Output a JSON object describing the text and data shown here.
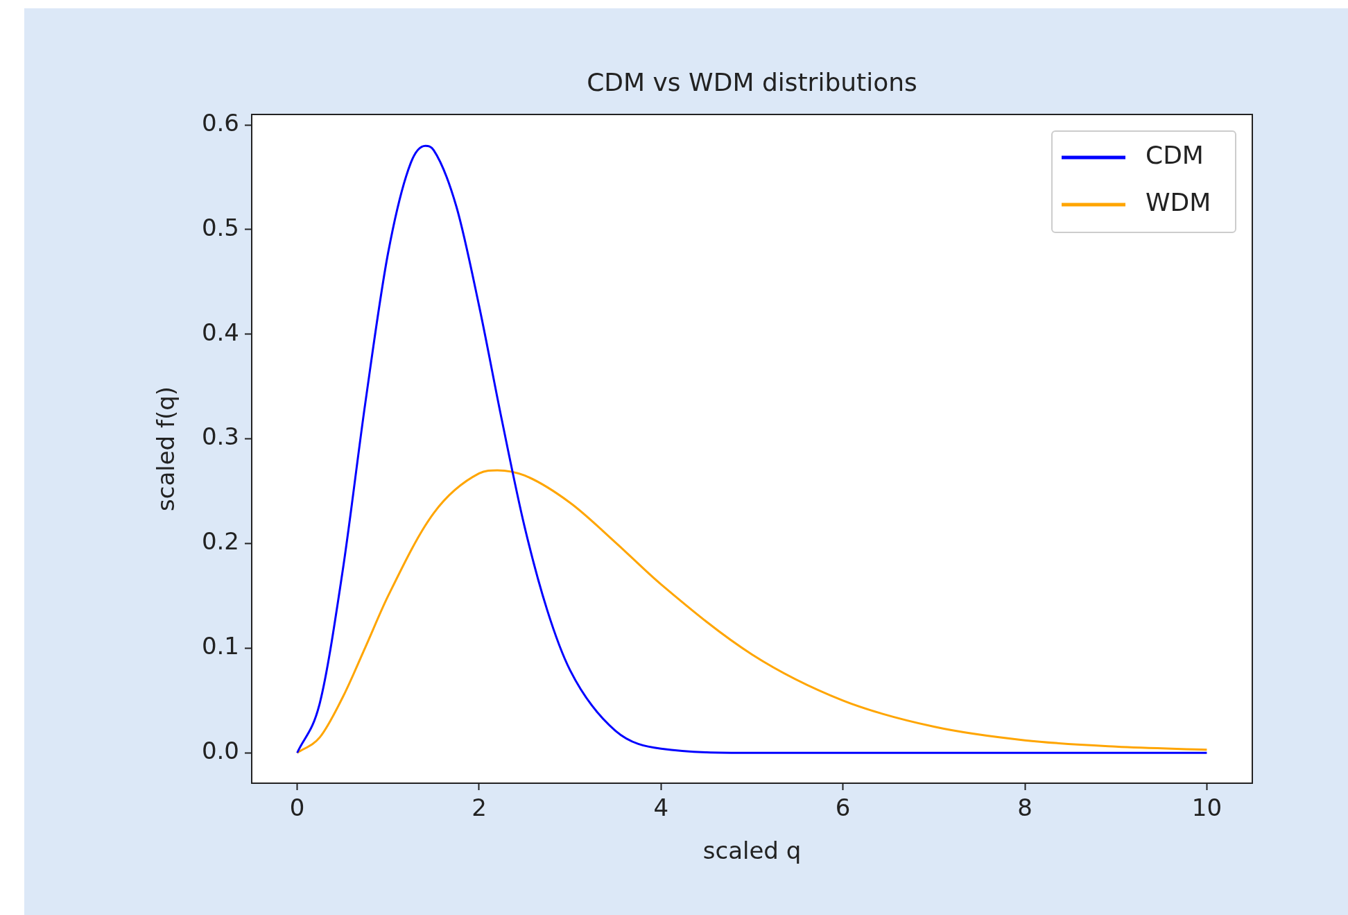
{
  "chart_data": {
    "type": "line",
    "title": "CDM vs WDM distributions",
    "xlabel": "scaled q",
    "ylabel": "scaled f(q)",
    "xlim": [
      -0.5,
      10.5
    ],
    "xticks": [
      0,
      2,
      4,
      6,
      8,
      10
    ],
    "ylim": [
      -0.029,
      0.61
    ],
    "yticks": [
      {
        "value": 0,
        "label": "0.0"
      },
      0.1,
      0.2,
      0.3,
      0.4,
      0.5,
      0.6
    ],
    "grid": false,
    "legend": "top right",
    "marker": "none",
    "line_style": "solid",
    "series": [
      {
        "name": "CDM",
        "color": "#0000ff",
        "x": [
          0,
          0.25,
          0.5,
          0.75,
          1,
          1.25,
          1.41,
          1.5,
          1.75,
          2,
          2.25,
          2.5,
          2.75,
          3,
          3.5,
          4,
          5,
          10
        ],
        "values": [
          0,
          0.048,
          0.174,
          0.335,
          0.478,
          0.564,
          0.58,
          0.576,
          0.522,
          0.427,
          0.318,
          0.216,
          0.136,
          0.079,
          0.021,
          0.004,
          0.0,
          0.0
        ]
      },
      {
        "name": "WDM",
        "color": "#ffa500",
        "x": [
          0,
          0.25,
          0.5,
          0.75,
          1,
          1.5,
          2,
          2.2,
          2.5,
          3,
          3.5,
          4,
          5,
          6,
          7,
          8,
          9,
          10
        ],
        "values": [
          0,
          0.015,
          0.053,
          0.101,
          0.15,
          0.229,
          0.267,
          0.27,
          0.265,
          0.239,
          0.201,
          0.161,
          0.094,
          0.05,
          0.025,
          0.012,
          0.006,
          0.003
        ]
      }
    ]
  }
}
